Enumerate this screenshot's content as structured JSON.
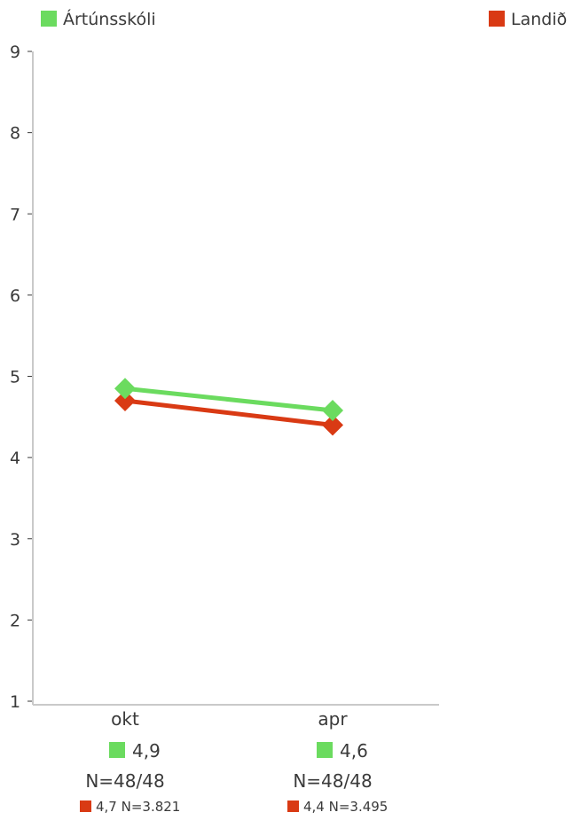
{
  "chart_data": {
    "type": "line",
    "categories": [
      "okt",
      "apr"
    ],
    "ylim": [
      1,
      9
    ],
    "y_ticks": [
      1,
      2,
      3,
      4,
      5,
      6,
      7,
      8,
      9
    ],
    "grid": false,
    "legend_placement": "top",
    "series": [
      {
        "name": "Ártúnsskóli",
        "color": "#6bdb5f",
        "values": [
          4.85,
          4.58
        ],
        "value_labels": [
          "4,9",
          "4,6"
        ],
        "n_labels": [
          "N=48/48",
          "N=48/48"
        ]
      },
      {
        "name": "Landið",
        "color": "#d93a14",
        "values": [
          4.7,
          4.4
        ],
        "value_labels": [
          "4,7",
          "4,4"
        ],
        "n_labels": [
          "N=3.821",
          "N=3.495"
        ]
      }
    ]
  }
}
